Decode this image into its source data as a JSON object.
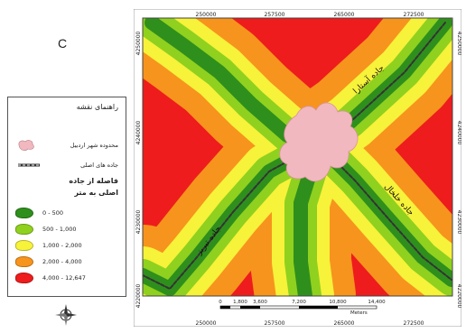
{
  "panel_label": "C",
  "legend": {
    "title": "راهنمای نقشه",
    "city_label": "محدوده شهر اردبیل",
    "road_label": "جاده های اصلی",
    "heading_line1": "فاصله از جاده",
    "heading_line2": "اصلی به متر",
    "classes": [
      {
        "label": "0 - 500",
        "color": "#2f8f1c"
      },
      {
        "label": "500 - 1,000",
        "color": "#8fd11e"
      },
      {
        "label": "1,000 - 2,000",
        "color": "#f7f23a"
      },
      {
        "label": "2,000 - 4,000",
        "color": "#f7941d"
      },
      {
        "label": "4,000 - 12,647",
        "color": "#ee1c1c"
      }
    ],
    "city_color": "#f2b8bf"
  },
  "map": {
    "top_ticks": [
      "250000",
      "257500",
      "265000",
      "272500"
    ],
    "bottom_ticks": [
      "250000",
      "257500",
      "265000",
      "272500"
    ],
    "left_ticks": [
      "4250000",
      "4240000",
      "4230000",
      "4220000"
    ],
    "right_ticks": [
      "4250000",
      "4240000",
      "4230000",
      "4220000"
    ],
    "road_labels": {
      "astara": "جاده آستارا",
      "tabriz": "جاده تبریز",
      "khalkhal": "جاده خلخال"
    },
    "scale_values": [
      "0",
      "1,800",
      "3,600",
      "7,200",
      "10,800",
      "14,400"
    ],
    "scale_unit": "Meters"
  }
}
